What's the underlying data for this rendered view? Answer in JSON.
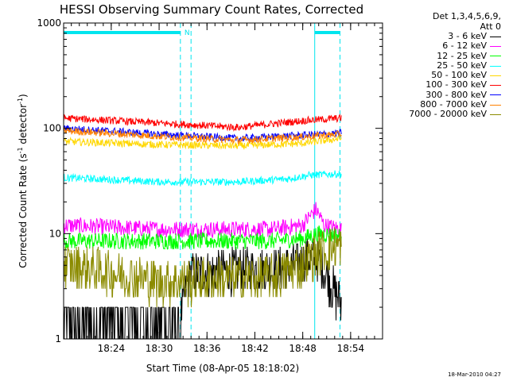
{
  "chart_data": {
    "type": "line",
    "title": "HESSI Observing Summary Count Rates, Corrected",
    "xlabel": "Start Time (08-Apr-05 18:18:02)",
    "ylabel": "Corrected Count Rate (s",
    "ylabel_sup1": "-1",
    "ylabel_mid": " detector",
    "ylabel_sup2": "-1",
    "ylabel_end": ")",
    "y_scale": "log",
    "ylim": [
      1,
      1000
    ],
    "xlim": [
      "18:18:02",
      "18:58:00"
    ],
    "x_ticks": [
      "18:24",
      "18:30",
      "18:36",
      "18:42",
      "18:48",
      "18:54"
    ],
    "y_ticks": [
      "1",
      "10",
      "100",
      "1000"
    ],
    "legend_header": [
      "Det 1,3,4,5,6,9,",
      "Att 0"
    ],
    "flags": {
      "night_label": "N",
      "night_bars": [
        [
          "18:18:02",
          "18:32:40"
        ],
        [
          "18:49:30",
          "18:52:40"
        ]
      ],
      "saa_lines": [
        "18:18:02",
        "18:32:40",
        "18:34:00",
        "18:49:30",
        "18:52:40"
      ],
      "color": "#00e5ee"
    },
    "series": [
      {
        "name": "3 - 6 keV",
        "color": "#000000",
        "x": [
          "18:18:02",
          "18:32:40",
          "18:34:00",
          "18:40:00",
          "18:46:00",
          "18:49:30",
          "18:51:00",
          "18:52:00",
          "18:52:50"
        ],
        "values": [
          1.5,
          1.5,
          4.2,
          4.5,
          4.6,
          6.0,
          4.0,
          2.8,
          2.2
        ]
      },
      {
        "name": "6 - 12 keV",
        "color": "#ff00ff",
        "x": [
          "18:18:02",
          "18:30:00",
          "18:44:00",
          "18:48:00",
          "18:49:40",
          "18:50:40",
          "18:52:50"
        ],
        "values": [
          12,
          11,
          11,
          12,
          17,
          12,
          11
        ]
      },
      {
        "name": "12 - 25 keV",
        "color": "#00ff00",
        "x": [
          "18:18:02",
          "18:30:00",
          "18:44:00",
          "18:48:00",
          "18:50:00",
          "18:52:50"
        ],
        "values": [
          8.5,
          8.5,
          8.5,
          9.0,
          10,
          9.5
        ]
      },
      {
        "name": "25 - 50 keV",
        "color": "#00ffff",
        "x": [
          "18:18:02",
          "18:30:00",
          "18:40:00",
          "18:46:00",
          "18:49:00",
          "18:52:50"
        ],
        "values": [
          34,
          31,
          31,
          33,
          36,
          37
        ]
      },
      {
        "name": "50 - 100 keV",
        "color": "#ffd700",
        "x": [
          "18:18:02",
          "18:30:00",
          "18:40:00",
          "18:48:00",
          "18:52:50"
        ],
        "values": [
          75,
          70,
          68,
          72,
          80
        ]
      },
      {
        "name": "100 - 300 keV",
        "color": "#ff0000",
        "x": [
          "18:18:02",
          "18:30:00",
          "18:40:00",
          "18:48:00",
          "18:52:50"
        ],
        "values": [
          125,
          112,
          102,
          118,
          125
        ]
      },
      {
        "name": "300 - 800 keV",
        "color": "#0000ff",
        "x": [
          "18:18:02",
          "18:30:00",
          "18:40:00",
          "18:48:00",
          "18:52:50"
        ],
        "values": [
          100,
          88,
          80,
          86,
          90
        ]
      },
      {
        "name": "800 - 7000 keV",
        "color": "#ff8000",
        "x": [
          "18:18:02",
          "18:30:00",
          "18:40:00",
          "18:48:00",
          "18:52:50"
        ],
        "values": [
          95,
          84,
          77,
          83,
          88
        ]
      },
      {
        "name": "7000 - 20000 keV",
        "color": "#8b8b00",
        "x": [
          "18:18:02",
          "18:30:00",
          "18:44:00",
          "18:48:00",
          "18:50:00",
          "18:52:00",
          "18:52:50"
        ],
        "values": [
          5.0,
          3.5,
          3.8,
          5.0,
          6.5,
          7.5,
          7.5
        ]
      }
    ]
  },
  "footer": {
    "timestamp": "18-Mar-2010 04:27"
  }
}
